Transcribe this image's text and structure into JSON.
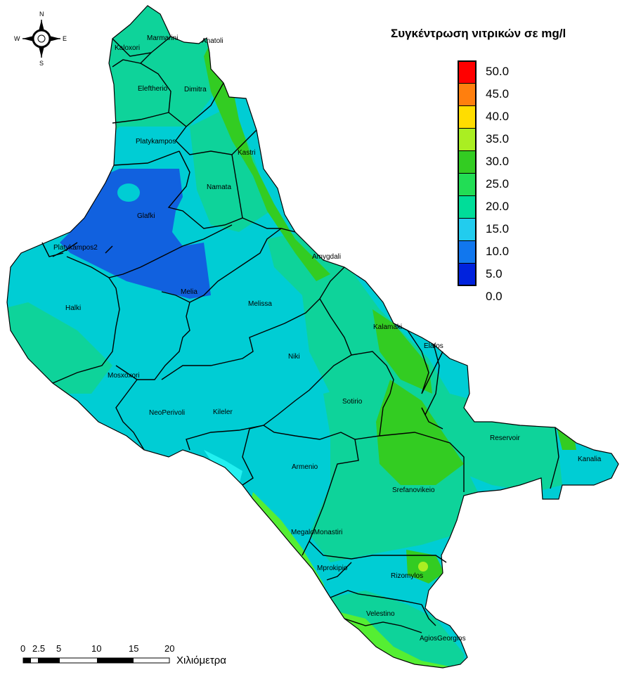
{
  "legend": {
    "title": "Συγκέντρωση νιτρικών σε mg/l",
    "classes": [
      {
        "label": "50.0",
        "color": "#ff0000"
      },
      {
        "label": "45.0",
        "color": "#ff3b1a"
      },
      {
        "label": "40.0",
        "color": "#ff7f0e"
      },
      {
        "label": "35.0",
        "color": "#ffdd00"
      },
      {
        "label": "30.0",
        "color": "#aaee22"
      },
      {
        "label": "25.0",
        "color": "#33cc22"
      },
      {
        "label": "20.0",
        "color": "#22dd55"
      },
      {
        "label": "15.0",
        "color": "#00dd99"
      },
      {
        "label": "10.0",
        "color": "#22ccee"
      },
      {
        "label": "5.0",
        "color": "#1177ee"
      },
      {
        "label": "0.0",
        "color": "#0022dd"
      }
    ]
  },
  "compass": {
    "n": "N",
    "s": "S",
    "e": "E",
    "w": "W"
  },
  "scale_bar": {
    "ticks": [
      "0",
      "2.5",
      "5",
      "10",
      "15",
      "20"
    ],
    "unit": "Χιλιόμετρα"
  },
  "places": [
    {
      "name": "Marmarini"
    },
    {
      "name": "Anatoli"
    },
    {
      "name": "Kaloxori"
    },
    {
      "name": "Eleftherio"
    },
    {
      "name": "Dimitra"
    },
    {
      "name": "Platykampos"
    },
    {
      "name": "Kastri"
    },
    {
      "name": "Namata"
    },
    {
      "name": "Glafki"
    },
    {
      "name": "Platykampos2"
    },
    {
      "name": "Amygdali"
    },
    {
      "name": "Melia"
    },
    {
      "name": "Melissa"
    },
    {
      "name": "Halki"
    },
    {
      "name": "Kalamaki"
    },
    {
      "name": "Elafos"
    },
    {
      "name": "Niki"
    },
    {
      "name": "Mosxoxori"
    },
    {
      "name": "Sotirio"
    },
    {
      "name": "NeoPerivoli"
    },
    {
      "name": "Kileler"
    },
    {
      "name": "Reservoir"
    },
    {
      "name": "Kanalia"
    },
    {
      "name": "Armenio"
    },
    {
      "name": "Srefanovikeio"
    },
    {
      "name": "MegaloMonastiri"
    },
    {
      "name": "Mprokipio"
    },
    {
      "name": "Rizomylos"
    },
    {
      "name": "Velestino"
    },
    {
      "name": "AgiosGeorgios"
    }
  ]
}
